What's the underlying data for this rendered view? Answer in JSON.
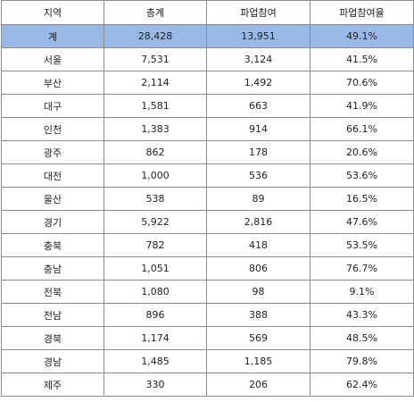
{
  "table": {
    "headers": [
      "지역",
      "총계",
      "파업참여",
      "파업참여율"
    ],
    "total": {
      "region": "계",
      "total": "28,428",
      "participants": "13,951",
      "rate": "49.1%"
    },
    "rows": [
      {
        "region": "서울",
        "total": "7,531",
        "participants": "3,124",
        "rate": "41.5%"
      },
      {
        "region": "부산",
        "total": "2,114",
        "participants": "1,492",
        "rate": "70.6%"
      },
      {
        "region": "대구",
        "total": "1,581",
        "participants": "663",
        "rate": "41.9%"
      },
      {
        "region": "인천",
        "total": "1,383",
        "participants": "914",
        "rate": "66.1%"
      },
      {
        "region": "광주",
        "total": "862",
        "participants": "178",
        "rate": "20.6%"
      },
      {
        "region": "대전",
        "total": "1,000",
        "participants": "536",
        "rate": "53.6%"
      },
      {
        "region": "울산",
        "total": "538",
        "participants": "89",
        "rate": "16.5%"
      },
      {
        "region": "경기",
        "total": "5,922",
        "participants": "2,816",
        "rate": "47.6%"
      },
      {
        "region": "충북",
        "total": "782",
        "participants": "418",
        "rate": "53.5%"
      },
      {
        "region": "충남",
        "total": "1,051",
        "participants": "806",
        "rate": "76.7%"
      },
      {
        "region": "전북",
        "total": "1,080",
        "participants": "98",
        "rate": "9.1%"
      },
      {
        "region": "전남",
        "total": "896",
        "participants": "388",
        "rate": "43.3%"
      },
      {
        "region": "경북",
        "total": "1,174",
        "participants": "569",
        "rate": "48.5%"
      },
      {
        "region": "경남",
        "total": "1,485",
        "participants": "1,185",
        "rate": "79.8%"
      },
      {
        "region": "제주",
        "total": "330",
        "participants": "206",
        "rate": "62.4%"
      }
    ]
  },
  "colors": {
    "total_row_bg": "#9ab8e6",
    "border": "#8c8c8c",
    "text": "#222222"
  }
}
